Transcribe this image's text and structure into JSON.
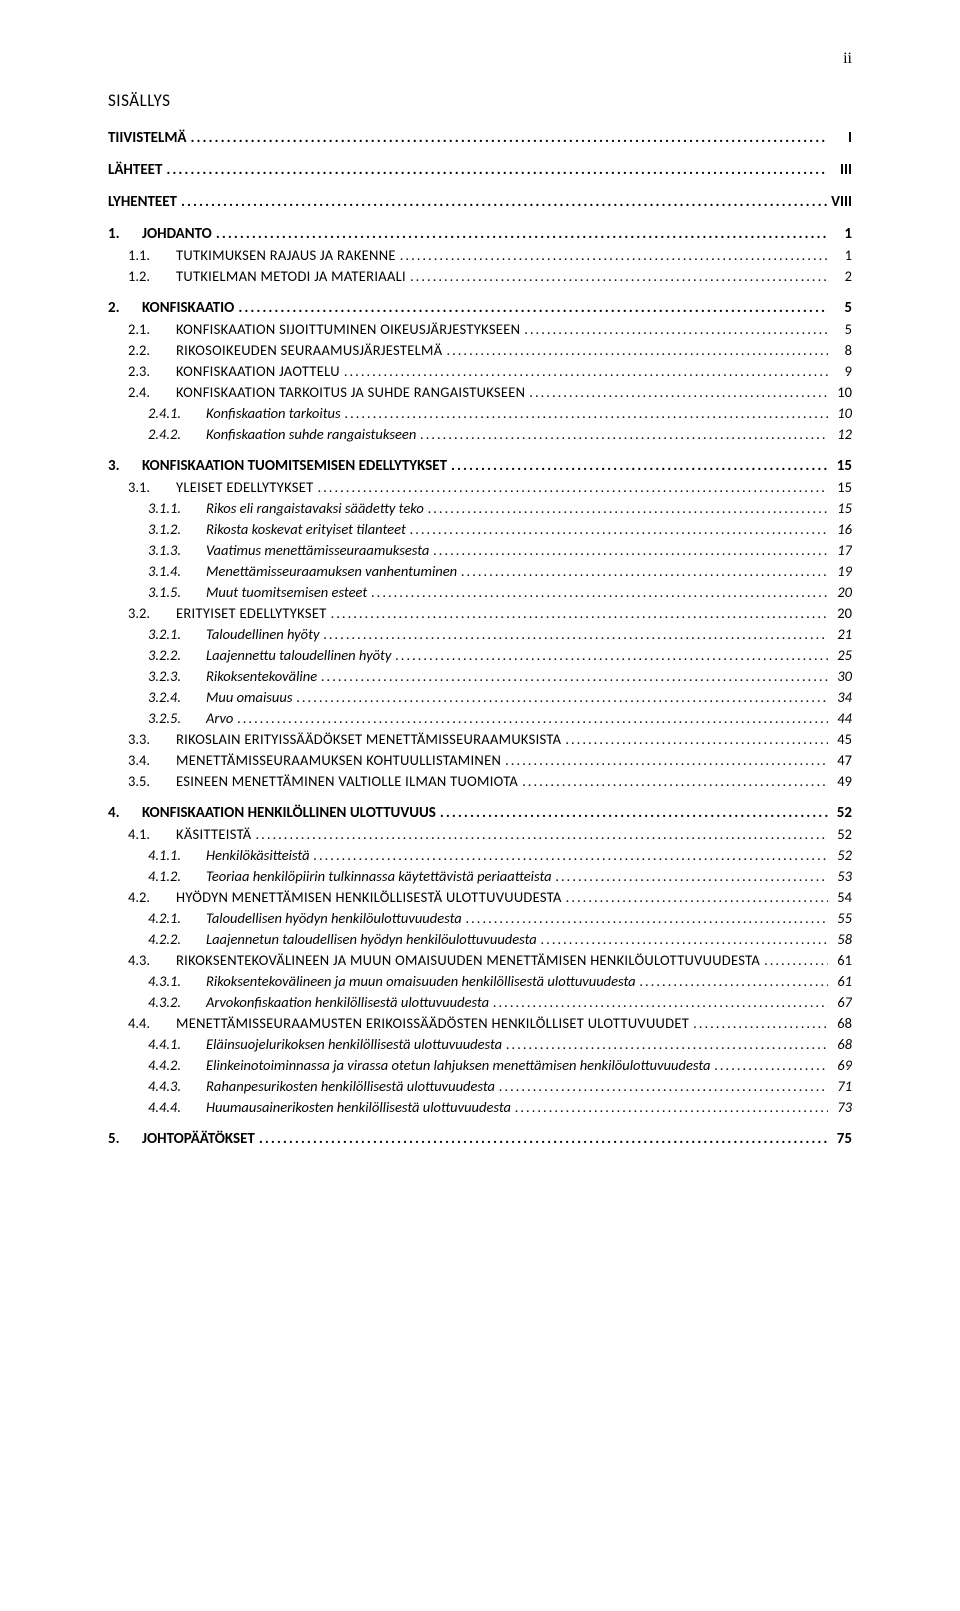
{
  "page_number_label": "ii",
  "title": "SISÄLLYS",
  "entries": [
    {
      "level": 1,
      "num": "",
      "text": "TIIVISTELMÄ",
      "page": "I",
      "bold": true
    },
    {
      "level": 1,
      "num": "",
      "text": "LÄHTEET",
      "page": "III",
      "bold": true
    },
    {
      "level": 1,
      "num": "",
      "text": "LYHENTEET",
      "page": "VIII",
      "bold": true
    },
    {
      "level": 1,
      "num": "1.",
      "text": "JOHDANTO",
      "page": "1",
      "bold": true
    },
    {
      "level": 2,
      "num": "1.1.",
      "text": "TUTKIMUKSEN RAJAUS JA RAKENNE",
      "page": "1",
      "smallcaps": true
    },
    {
      "level": 2,
      "num": "1.2.",
      "text": "TUTKIELMAN METODI JA MATERIAALI",
      "page": "2",
      "smallcaps": true
    },
    {
      "level": 1,
      "num": "2.",
      "text": "KONFISKAATIO",
      "page": "5",
      "bold": true
    },
    {
      "level": 2,
      "num": "2.1.",
      "text": "KONFISKAATION SIJOITTUMINEN OIKEUSJÄRJESTYKSEEN",
      "page": "5",
      "smallcaps": true
    },
    {
      "level": 2,
      "num": "2.2.",
      "text": "RIKOSOIKEUDEN SEURAAMUSJÄRJESTELMÄ",
      "page": "8",
      "smallcaps": true
    },
    {
      "level": 2,
      "num": "2.3.",
      "text": "KONFISKAATION JAOTTELU",
      "page": "9",
      "smallcaps": true
    },
    {
      "level": 2,
      "num": "2.4.",
      "text": "KONFISKAATION TARKOITUS JA SUHDE RANGAISTUKSEEN",
      "page": "10",
      "smallcaps": true
    },
    {
      "level": 3,
      "num": "2.4.1.",
      "text": "Konfiskaation tarkoitus",
      "page": "10"
    },
    {
      "level": 3,
      "num": "2.4.2.",
      "text": "Konfiskaation suhde rangaistukseen",
      "page": "12"
    },
    {
      "level": 1,
      "num": "3.",
      "text": "KONFISKAATION TUOMITSEMISEN EDELLYTYKSET",
      "page": "15",
      "bold": true
    },
    {
      "level": 2,
      "num": "3.1.",
      "text": "YLEISET EDELLYTYKSET",
      "page": "15",
      "smallcaps": true
    },
    {
      "level": 3,
      "num": "3.1.1.",
      "text": "Rikos eli rangaistavaksi säädetty teko",
      "page": "15"
    },
    {
      "level": 3,
      "num": "3.1.2.",
      "text": "Rikosta koskevat erityiset tilanteet",
      "page": "16"
    },
    {
      "level": 3,
      "num": "3.1.3.",
      "text": "Vaatimus menettämisseuraamuksesta",
      "page": "17"
    },
    {
      "level": 3,
      "num": "3.1.4.",
      "text": "Menettämisseuraamuksen vanhentuminen",
      "page": "19"
    },
    {
      "level": 3,
      "num": "3.1.5.",
      "text": "Muut tuomitsemisen esteet",
      "page": "20"
    },
    {
      "level": 2,
      "num": "3.2.",
      "text": "ERITYISET EDELLYTYKSET",
      "page": "20",
      "smallcaps": true
    },
    {
      "level": 3,
      "num": "3.2.1.",
      "text": "Taloudellinen hyöty",
      "page": "21"
    },
    {
      "level": 3,
      "num": "3.2.2.",
      "text": "Laajennettu taloudellinen hyöty",
      "page": "25"
    },
    {
      "level": 3,
      "num": "3.2.3.",
      "text": "Rikoksentekoväline",
      "page": "30"
    },
    {
      "level": 3,
      "num": "3.2.4.",
      "text": "Muu omaisuus",
      "page": "34"
    },
    {
      "level": 3,
      "num": "3.2.5.",
      "text": "Arvo",
      "page": "44"
    },
    {
      "level": 2,
      "num": "3.3.",
      "text": "RIKOSLAIN ERITYISSÄÄDÖKSET MENETTÄMISSEURAAMUKSISTA",
      "page": "45",
      "smallcaps": true
    },
    {
      "level": 2,
      "num": "3.4.",
      "text": "MENETTÄMISSEURAAMUKSEN KOHTUULLISTAMINEN",
      "page": "47",
      "smallcaps": true
    },
    {
      "level": 2,
      "num": "3.5.",
      "text": "ESINEEN MENETTÄMINEN VALTIOLLE ILMAN TUOMIOTA",
      "page": "49",
      "smallcaps": true
    },
    {
      "level": 1,
      "num": "4.",
      "text": "KONFISKAATION HENKILÖLLINEN ULOTTUVUUS",
      "page": "52",
      "bold": true
    },
    {
      "level": 2,
      "num": "4.1.",
      "text": "KÄSITTEISTÄ",
      "page": "52",
      "smallcaps": true
    },
    {
      "level": 3,
      "num": "4.1.1.",
      "text": "Henkilökäsitteistä",
      "page": "52"
    },
    {
      "level": 3,
      "num": "4.1.2.",
      "text": "Teoriaa henkilöpiirin tulkinnassa käytettävistä periaatteista",
      "page": "53"
    },
    {
      "level": 2,
      "num": "4.2.",
      "text": "HYÖDYN MENETTÄMISEN HENKILÖLLISESTÄ ULOTTUVUUDESTA",
      "page": "54",
      "smallcaps": true
    },
    {
      "level": 3,
      "num": "4.2.1.",
      "text": "Taloudellisen hyödyn henkilöulottuvuudesta",
      "page": "55"
    },
    {
      "level": 3,
      "num": "4.2.2.",
      "text": "Laajennetun taloudellisen hyödyn henkilöulottuvuudesta",
      "page": "58"
    },
    {
      "level": 2,
      "num": "4.3.",
      "text": "RIKOKSENTEKOVÄLINEEN JA MUUN OMAISUUDEN MENETTÄMISEN HENKILÖULOTTUVUUDESTA",
      "page": "61",
      "smallcaps": true
    },
    {
      "level": 3,
      "num": "4.3.1.",
      "text": "Rikoksentekovälineen ja muun omaisuuden henkilöllisestä ulottuvuudesta",
      "page": "61"
    },
    {
      "level": 3,
      "num": "4.3.2.",
      "text": "Arvokonfiskaation henkilöllisestä ulottuvuudesta",
      "page": "67"
    },
    {
      "level": 2,
      "num": "4.4.",
      "text": "MENETTÄMISSEURAAMUSTEN ERIKOISSÄÄDÖSTEN HENKILÖLLISET ULOTTUVUUDET",
      "page": "68",
      "smallcaps": true
    },
    {
      "level": 3,
      "num": "4.4.1.",
      "text": "Eläinsuojelurikoksen henkilöllisestä ulottuvuudesta",
      "page": "68"
    },
    {
      "level": 3,
      "num": "4.4.2.",
      "text": "Elinkeinotoiminnassa ja virassa otetun lahjuksen menettämisen henkilöulottuvuudesta",
      "page": "69"
    },
    {
      "level": 3,
      "num": "4.4.3.",
      "text": "Rahanpesurikosten henkilöllisestä ulottuvuudesta",
      "page": "71"
    },
    {
      "level": 3,
      "num": "4.4.4.",
      "text": "Huumausainerikosten henkilöllisestä ulottuvuudesta",
      "page": "73"
    },
    {
      "level": 1,
      "num": "5.",
      "text": "JOHTOPÄÄTÖKSET",
      "page": "75",
      "bold": true
    }
  ]
}
